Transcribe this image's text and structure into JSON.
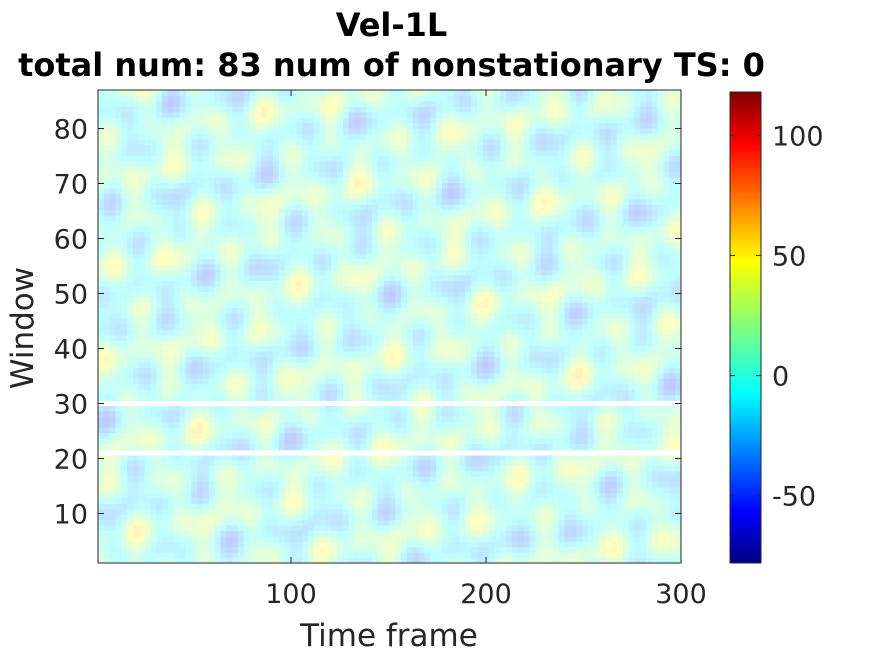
{
  "chart_data": {
    "type": "heatmap",
    "title": "Vel-1L",
    "subtitle": "total num: 83 num of nonstationary TS: 0",
    "xlabel": "Time frame",
    "ylabel": "Window",
    "xlim": [
      1,
      300
    ],
    "ylim": [
      1,
      87
    ],
    "x_ticks": [
      100,
      200,
      300
    ],
    "y_ticks": [
      10,
      20,
      30,
      40,
      50,
      60,
      70,
      80
    ],
    "colorbar": {
      "colormap": "jet",
      "range": [
        -78,
        118
      ],
      "ticks": [
        -50,
        0,
        50,
        100
      ]
    },
    "masked_windows": [
      21,
      30
    ],
    "value_summary": "mostly near 0 with scattered positive streaks up to ~60 and negative patches to ~-20; rendered semi-transparent"
  }
}
